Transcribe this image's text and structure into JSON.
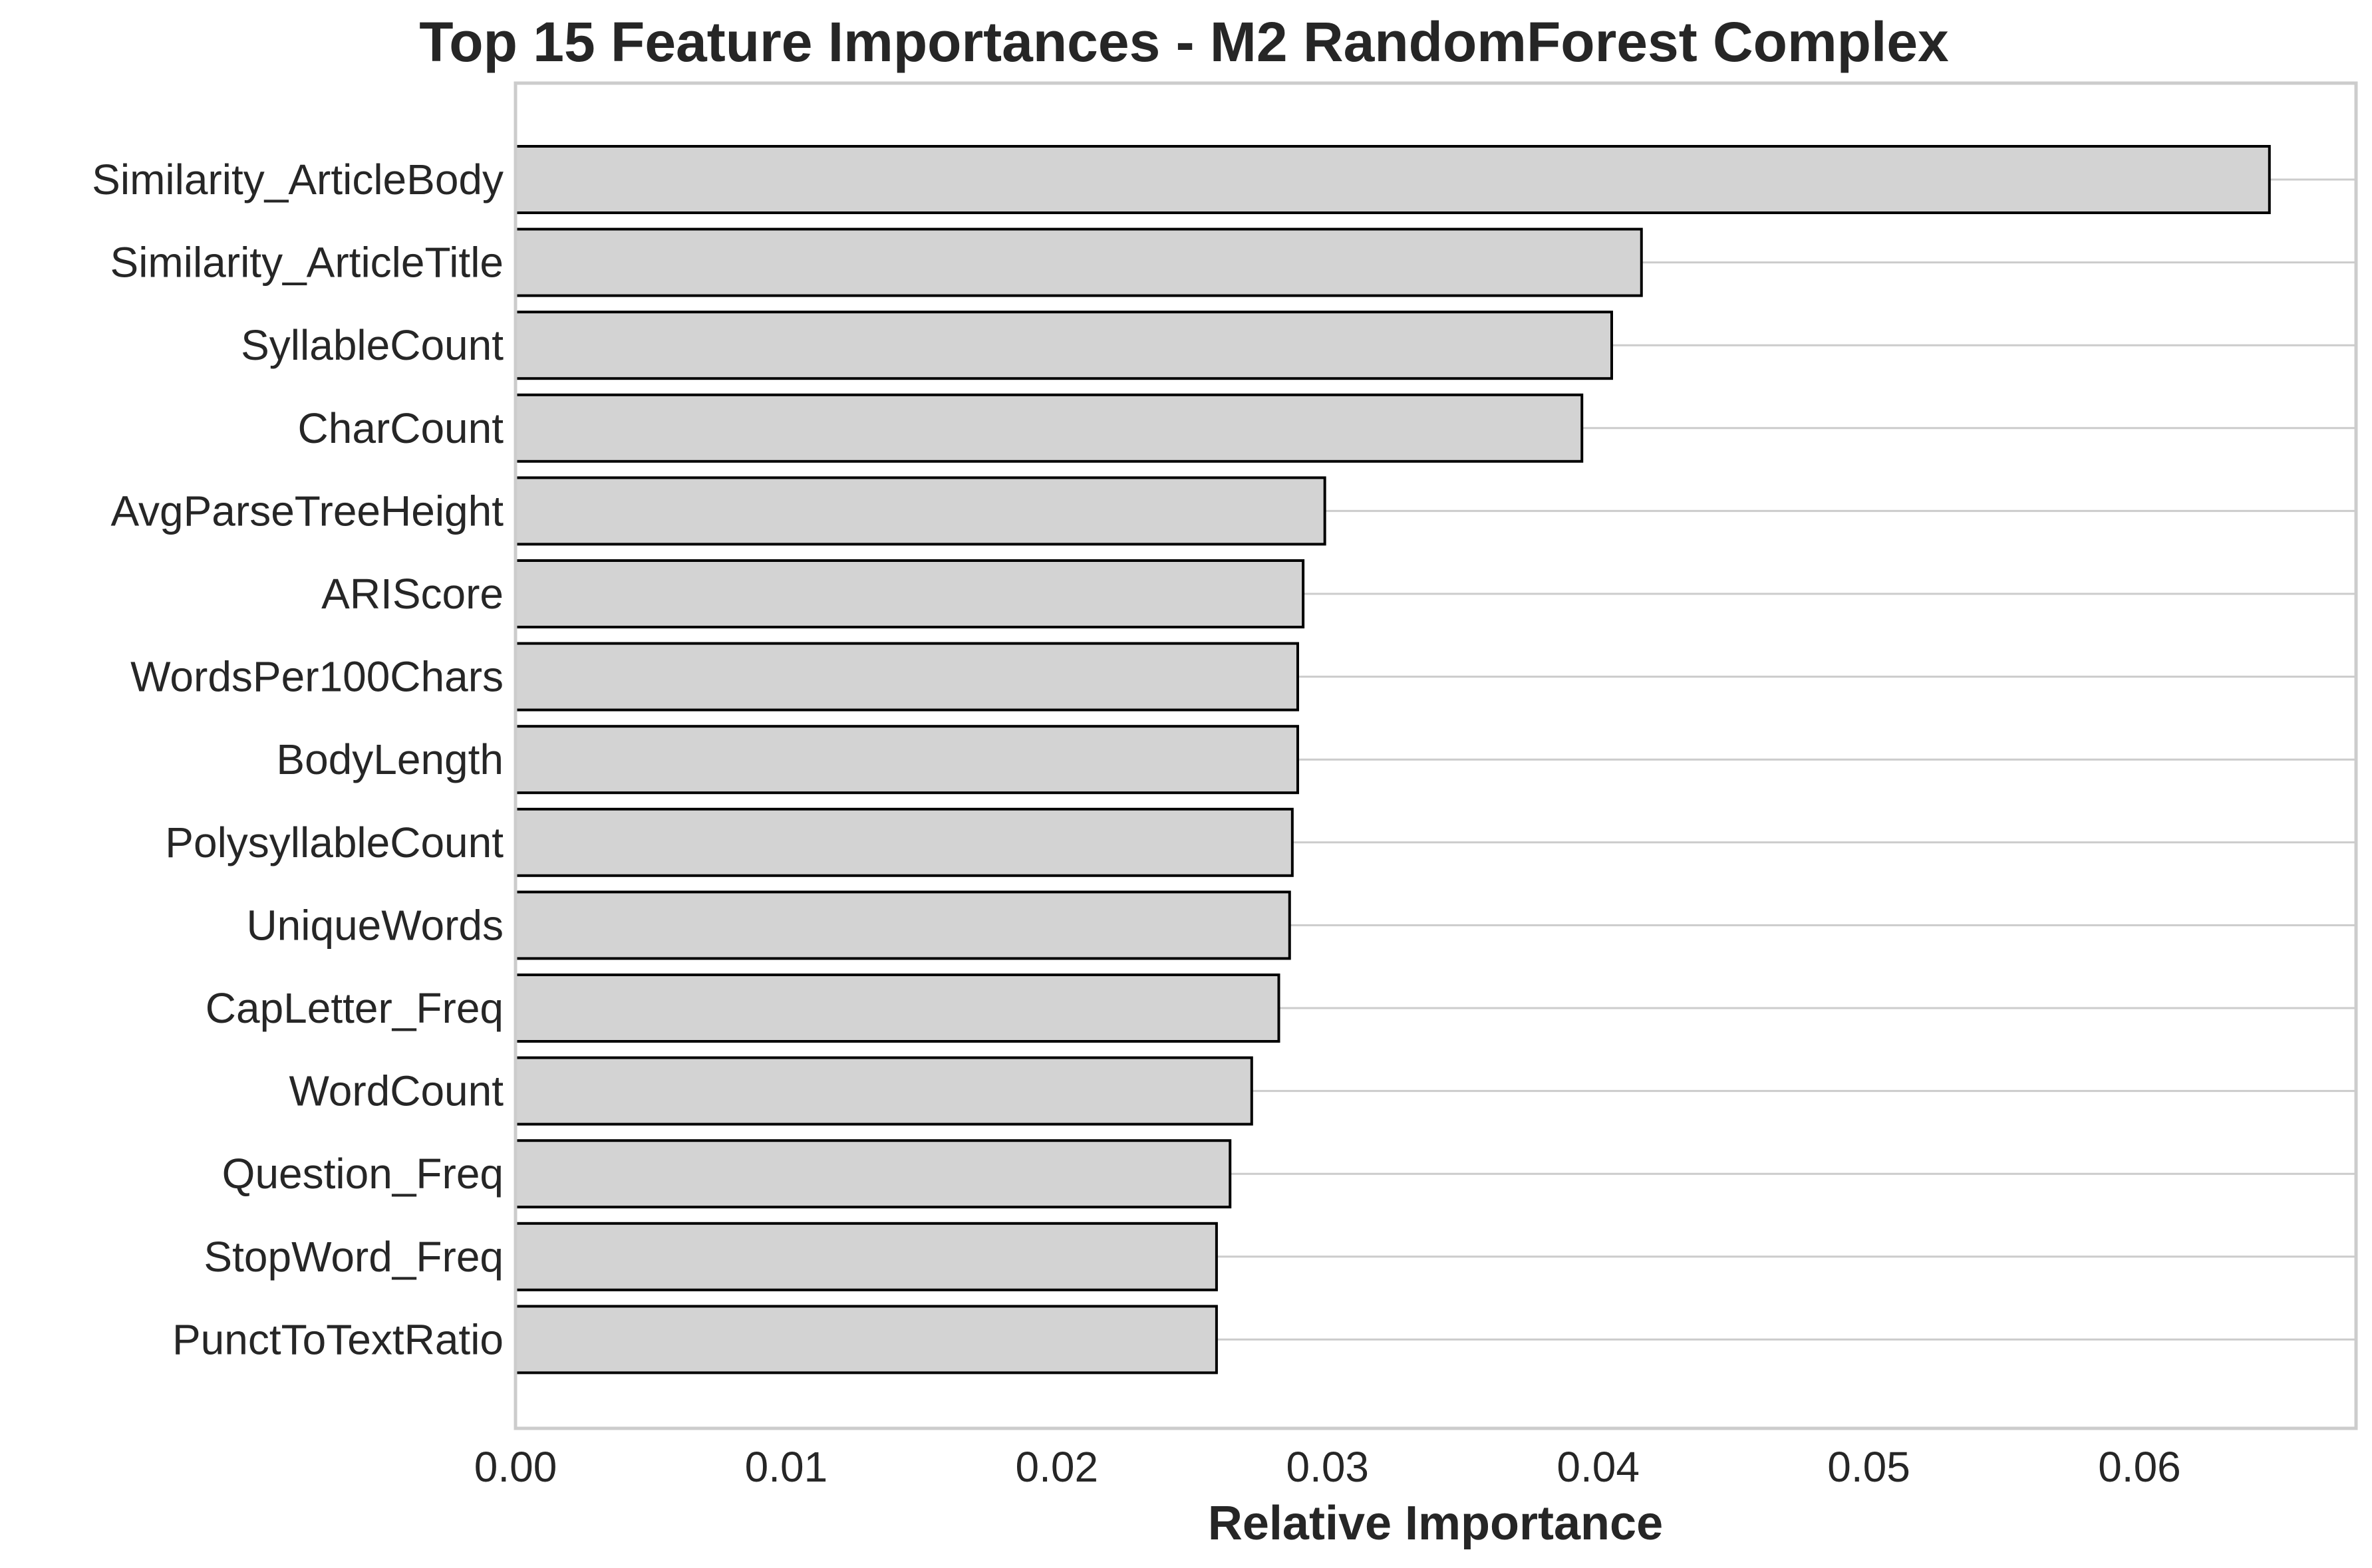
{
  "chart_data": {
    "type": "bar",
    "orientation": "horizontal",
    "title": "Top 15 Feature Importances - M2 RandomForest Complex",
    "xlabel": "Relative Importance",
    "ylabel": "",
    "xlim": [
      0,
      0.068
    ],
    "x_ticks": [
      "0.00",
      "0.01",
      "0.02",
      "0.03",
      "0.04",
      "0.05",
      "0.06"
    ],
    "x_tick_values": [
      0.0,
      0.01,
      0.02,
      0.03,
      0.04,
      0.05,
      0.06
    ],
    "grid": "horizontal lines at each category",
    "bar_color": "#d3d3d3",
    "bar_edge_color": "#000000",
    "categories": [
      "Similarity_ArticleBody",
      "Similarity_ArticleTitle",
      "SyllableCount",
      "CharCount",
      "AvgParseTreeHeight",
      "ARIScore",
      "WordsPer100Chars",
      "BodyLength",
      "PolysyllableCount",
      "UniqueWords",
      "CapLetter_Freq",
      "WordCount",
      "Question_Freq",
      "StopWord_Freq",
      "PunctToTextRatio"
    ],
    "values": [
      0.0648,
      0.0416,
      0.0405,
      0.0394,
      0.0299,
      0.0291,
      0.0289,
      0.0289,
      0.0287,
      0.0286,
      0.0282,
      0.0272,
      0.0264,
      0.0259,
      0.0259
    ]
  }
}
